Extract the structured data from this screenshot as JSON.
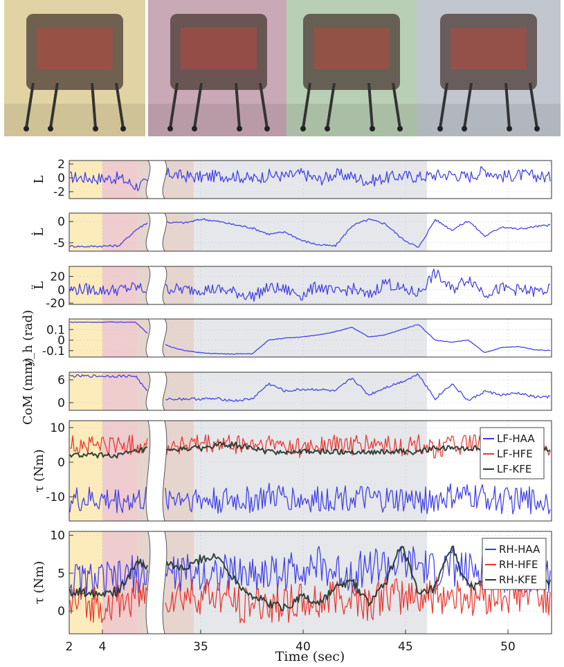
{
  "chart_data": {
    "type": "line",
    "xlabel": "Time (sec)",
    "x_ticks": [
      "2",
      "4",
      "35",
      "40",
      "45",
      "50"
    ],
    "phase_colors": [
      "#fbe9b0",
      "#ecc3c6",
      "#d6efd2",
      "#e1e3e8"
    ],
    "photo_tints": [
      "#e2d3a4",
      "#c9a9b6",
      "#b9cfb5",
      "#c2c6ce"
    ],
    "series_colors": {
      "blue": "#3a3ae6",
      "red": "#e8332b",
      "black": "#253a2f"
    },
    "panels": [
      {
        "ylabel": "L",
        "yticks": [
          "2",
          "0",
          "-2"
        ],
        "ylim": [
          -3,
          2.5
        ],
        "series": [
          {
            "values": [
              0.1,
              0.0,
              -0.1,
              0.0,
              -1.2,
              -0.6,
              0.6,
              0.2,
              0.1,
              0.3,
              0.3,
              -0.2,
              0.4,
              0.2,
              0.6,
              -0.3,
              0.5,
              0.2,
              -0.5,
              0.0,
              0.3,
              0.1,
              0.4,
              0.5,
              0.1,
              1.1,
              0.2,
              0.4,
              0.3,
              0.0
            ],
            "noise": 0.9
          }
        ]
      },
      {
        "ylabel": "L̇",
        "yticks": [
          "0",
          "-5"
        ],
        "ylim": [
          -7,
          2
        ],
        "series": [
          {
            "values": [
              -5.8,
              -5.9,
              -5.8,
              -5.7,
              -2.0,
              0.5,
              -0.2,
              -0.3,
              0.6,
              0.0,
              -0.8,
              -1.5,
              -3.0,
              -2.5,
              -4.5,
              -5.5,
              -5.8,
              -1.0,
              0.5,
              -0.5,
              -4.0,
              -6.2,
              0.5,
              -2.0,
              0.2,
              -3.5,
              -1.2,
              -1.8,
              -1.2,
              -0.8
            ],
            "noise": 0.25
          }
        ]
      },
      {
        "ylabel": "L̈",
        "yticks": [
          "20",
          "0",
          "-20"
        ],
        "ylim": [
          -22,
          35
        ],
        "series": [
          {
            "values": [
              0,
              1,
              -1,
              0,
              4,
              -3,
              2,
              0,
              1,
              0,
              -4,
              -10,
              3,
              0,
              -8,
              6,
              -5,
              2,
              -10,
              12,
              0,
              -5,
              25,
              0,
              18,
              -5,
              2,
              0,
              -3,
              0
            ],
            "noise": 9
          }
        ]
      },
      {
        "ylabel": "y_h (rad)",
        "yticks": [
          "0.1",
          "0",
          "-0.1"
        ],
        "ylim": [
          -0.16,
          0.2
        ],
        "series": [
          {
            "values": [
              0.17,
              0.17,
              0.17,
              0.17,
              0.17,
              0.02,
              -0.06,
              -0.1,
              -0.12,
              -0.13,
              -0.13,
              -0.13,
              0.0,
              0.02,
              0.03,
              0.05,
              0.08,
              0.12,
              0.03,
              0.05,
              0.1,
              0.15,
              0.0,
              -0.02,
              0.0,
              -0.12,
              -0.07,
              -0.06,
              -0.09,
              -0.1
            ],
            "noise": 0.003
          }
        ]
      },
      {
        "ylabel": "CoM (mm)",
        "yticks": [
          "6",
          "0"
        ],
        "ylim": [
          -2,
          8
        ],
        "series": [
          {
            "values": [
              7.0,
              7.0,
              7.0,
              7.0,
              7.0,
              1.0,
              1.0,
              1.0,
              1.0,
              1.0,
              0.5,
              1.0,
              5.0,
              3.0,
              3.5,
              3.5,
              3.0,
              6.5,
              2.0,
              4.0,
              5.5,
              7.5,
              1.0,
              5.0,
              0.5,
              3.0,
              2.0,
              2.5,
              1.5,
              1.5
            ],
            "noise": 0.35
          }
        ]
      },
      {
        "ylabel": "τ (Nm)",
        "yticks": [
          "10",
          "0",
          "-10"
        ],
        "ylim": [
          -17,
          12
        ],
        "legend": [
          "LF-HAA",
          "LF-HFE",
          "LF-KFE"
        ],
        "series": [
          {
            "color": "blue",
            "values": [
              -11,
              -11,
              -11,
              -11,
              -11,
              -11,
              -10,
              -10,
              -11,
              -11,
              -11,
              -11,
              -10,
              -10,
              -11,
              -11,
              -10,
              -10,
              -11,
              -11,
              -11,
              -11,
              -11,
              -10,
              -10,
              -10,
              -11,
              -11,
              -11,
              -11
            ],
            "noise": 4
          },
          {
            "color": "red",
            "values": [
              5,
              5,
              5,
              5,
              5,
              5,
              5,
              5,
              5,
              5,
              5,
              5,
              5,
              5,
              4,
              5,
              5,
              5,
              5,
              5,
              4,
              5,
              4,
              5,
              5,
              5,
              5,
              5,
              5,
              5
            ],
            "noise": 3
          },
          {
            "color": "black",
            "values": [
              2,
              2,
              2,
              2,
              3,
              4,
              3,
              4,
              4,
              5,
              5,
              4,
              3,
              3,
              3,
              3,
              3,
              3,
              3,
              3,
              3,
              3,
              4,
              4,
              4,
              4,
              4,
              4,
              4,
              4
            ],
            "noise": 0.8
          }
        ]
      },
      {
        "ylabel": "τ (Nm)",
        "yticks": [
          "10",
          "5",
          "0"
        ],
        "ylim": [
          -3,
          10.5
        ],
        "legend": [
          "RH-HAA",
          "RH-HFE",
          "RH-KFE"
        ],
        "series": [
          {
            "color": "blue",
            "values": [
              4,
              4,
              4,
              4,
              5,
              5,
              5,
              5,
              5,
              5,
              5,
              5,
              5,
              5,
              6,
              6,
              5,
              5,
              6,
              6,
              6,
              6,
              5,
              6,
              5,
              6,
              5,
              5,
              5,
              5
            ],
            "noise": 2.6
          },
          {
            "color": "red",
            "values": [
              1,
              1,
              1,
              1,
              2,
              2,
              2,
              2,
              2,
              2,
              1,
              1,
              1,
              1,
              1,
              1,
              2,
              2,
              1,
              2,
              2,
              2,
              2,
              2,
              2,
              2,
              2,
              2,
              2,
              2
            ],
            "noise": 2.6
          },
          {
            "color": "black",
            "values": [
              2.5,
              2.5,
              2.5,
              2.5,
              6.5,
              5.5,
              6.0,
              5.5,
              7.0,
              7.0,
              4.0,
              2.0,
              1.0,
              0.5,
              2.0,
              1.0,
              3.0,
              4.0,
              1.0,
              3.5,
              9.0,
              2.0,
              3.0,
              8.5,
              3.0,
              4.0,
              5.5,
              3.5,
              4.0,
              4.0
            ],
            "noise": 0.6
          }
        ]
      }
    ]
  }
}
